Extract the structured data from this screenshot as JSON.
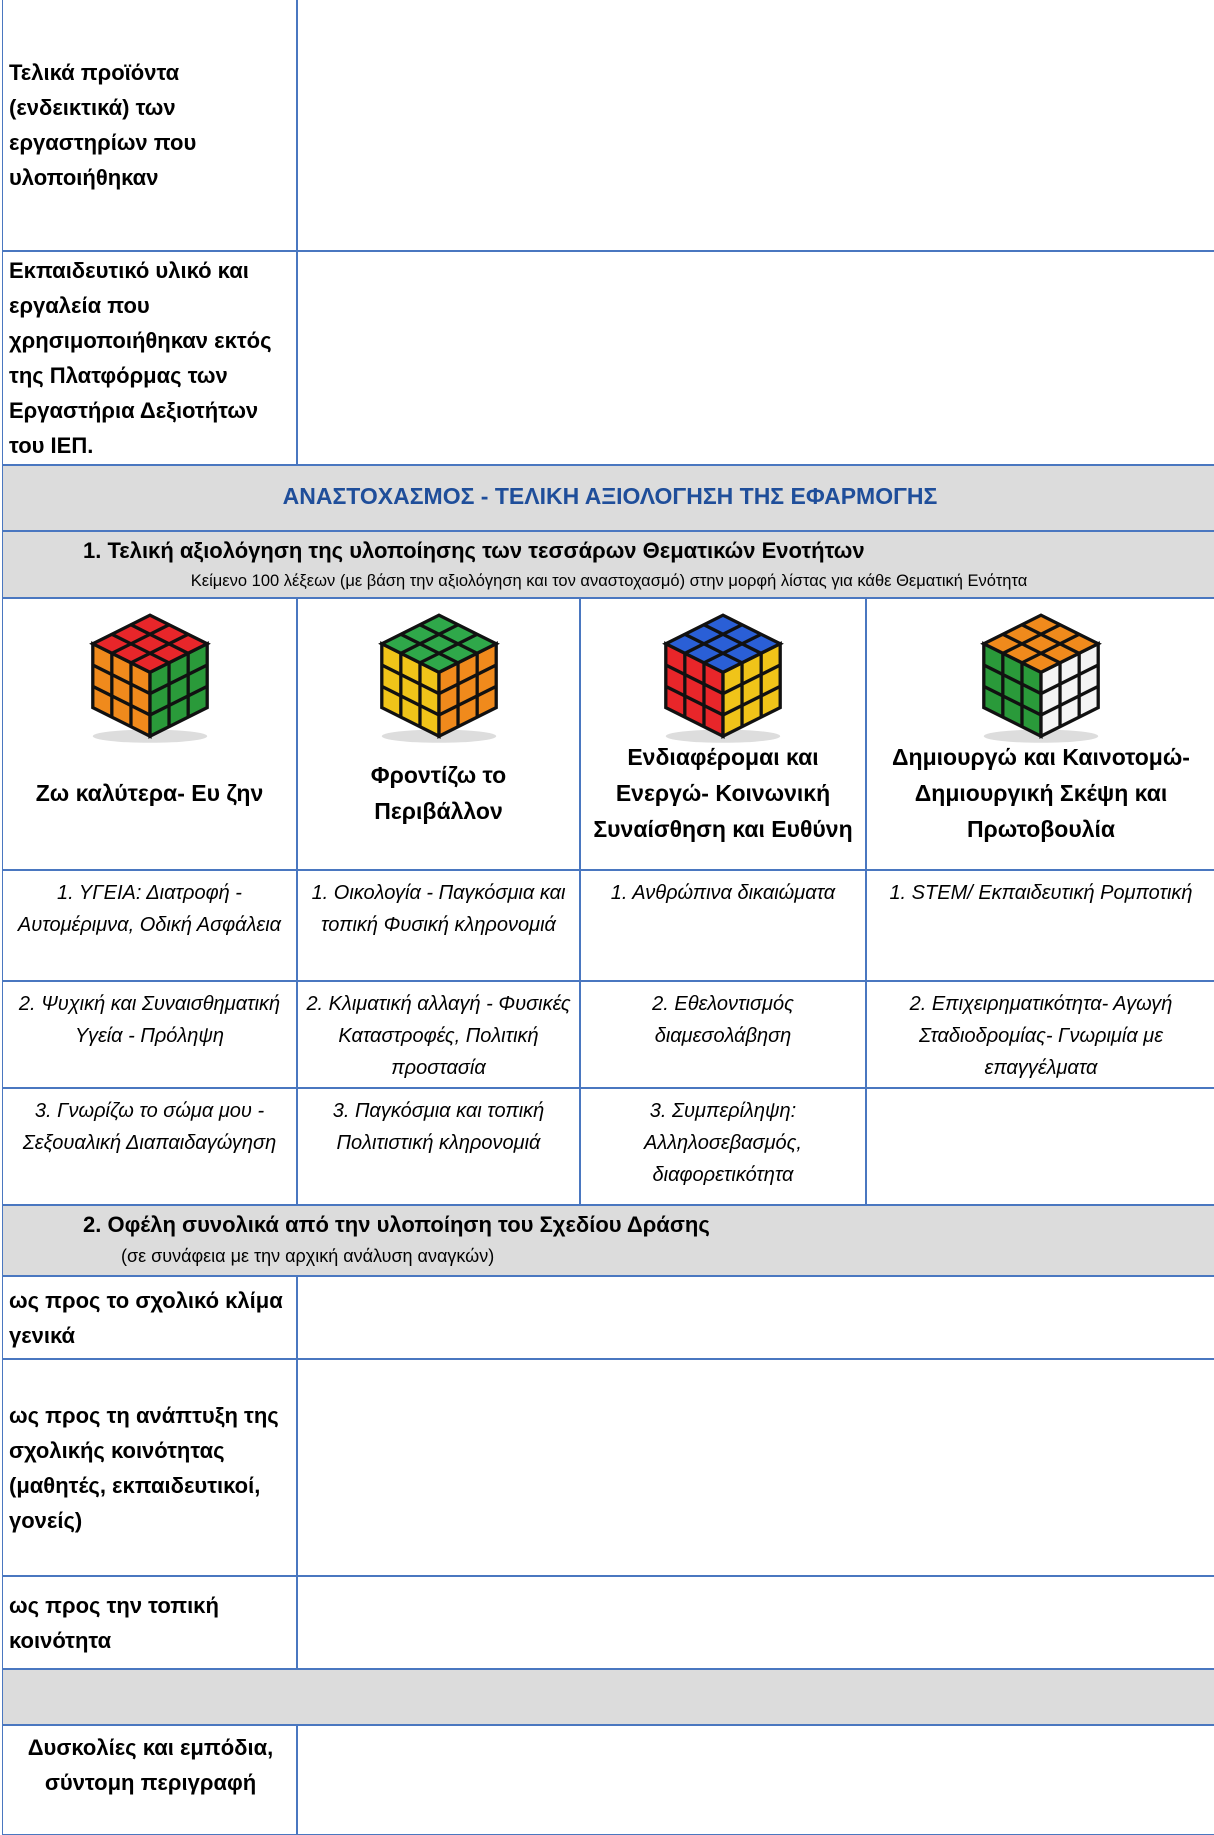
{
  "top_rows": [
    {
      "label": "Τελικά προϊόντα (ενδεικτικά) των εργαστηρίων που υλοποιήθηκαν"
    },
    {
      "label": "Εκπαιδευτικό υλικό και εργαλεία  που χρησιμοποιήθηκαν εκτός της Πλατφόρμας των Εργαστήρια Δεξιοτήτων του ΙΕΠ."
    }
  ],
  "section_title": "ΑΝΑΣΤΟΧΑΣΜΟΣ - ΤΕΛΙΚΗ ΑΞΙΟΛΟΓΗΣΗ ΤΗΣ ΕΦΑΡΜΟΓΗΣ",
  "section1": {
    "title": "1. Τελική αξιολόγηση της υλοποίησης των τεσσάρων Θεματικών Ενοτήτων",
    "subtitle": "Κείμενο 100 λέξεων (με βάση την αξιολόγηση και τον αναστοχασμό) στην μορφή λίστας για κάθε Θεματική Ενότητα"
  },
  "themes": [
    {
      "title": "Ζω καλύτερα- Ευ ζην",
      "items": [
        "1. ΥΓΕΙΑ: Διατροφή - Αυτομέριμνα, Οδική Ασφάλεια",
        "2. Ψυχική και Συναισθηματική Υγεία - Πρόληψη",
        "3. Γνωρίζω το σώμα μου - Σεξουαλική Διαπαιδαγώγηση"
      ]
    },
    {
      "title": "Φροντίζω το Περιβάλλον",
      "items": [
        "1. Οικολογία - Παγκόσμια και τοπική Φυσική κληρονομιά",
        "2. Κλιματική αλλαγή - Φυσικές Καταστροφές, Πολιτική προστασία",
        "3. Παγκόσμια και τοπική Πολιτιστική κληρονομιά"
      ]
    },
    {
      "title": "Ενδιαφέρομαι και Ενεργώ- Κοινωνική Συναίσθηση και Ευθύνη",
      "items": [
        "1. Ανθρώπινα δικαιώματα",
        "2. Εθελοντισμός διαμεσολάβηση",
        "3. Συμπερίληψη: Αλληλοσεβασμός, διαφορετικότητα"
      ]
    },
    {
      "title": "Δημιουργώ και Καινοτομώ- Δημιουργική Σκέψη και Πρωτοβουλία",
      "items": [
        "1. STEM/ Εκπαιδευτική Ρομποτική",
        "2. Επιχειρηματικότητα- Αγωγή Σταδιοδρομίας- Γνωριμία με επαγγέλματα"
      ]
    }
  ],
  "section2": {
    "title": "2. Οφέλη συνολικά από την υλοποίηση του Σχεδίου Δράσης",
    "subtitle": "(σε συνάφεια με την αρχική ανάλυση αναγκών)"
  },
  "benefits": [
    "ως προς το σχολικό κλίμα γενικά",
    "ως προς τη ανάπτυξη της σχολικής κοινότητας (μαθητές, εκπαιδευτικοί, γονείς)",
    "ως προς την τοπική κοινότητα"
  ],
  "difficulties": "Δυσκολίες και εμπόδια, σύντομη περιγραφή"
}
